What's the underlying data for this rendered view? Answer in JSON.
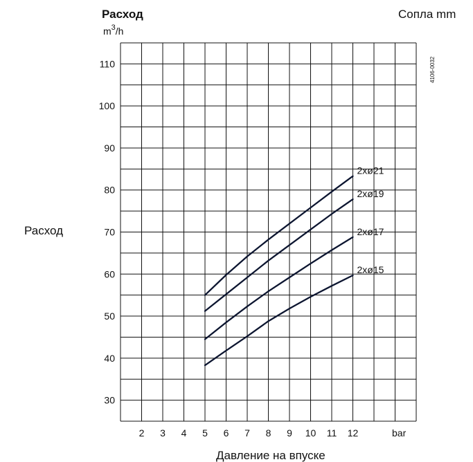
{
  "chart_data": {
    "type": "line",
    "title": "Расход",
    "unit_label": "m",
    "unit_sup": "3",
    "unit_tail": "/h",
    "side_label": "Расход",
    "legend_title": "Сопла mm",
    "xlabel": "Давление на впуске",
    "x_unit": "bar",
    "code": "4106-0032",
    "x_ticks": [
      2,
      3,
      4,
      5,
      6,
      7,
      8,
      9,
      10,
      11,
      12
    ],
    "y_ticks": [
      30,
      40,
      50,
      60,
      70,
      80,
      90,
      100,
      110
    ],
    "xlim": [
      1,
      15
    ],
    "ylim": [
      25,
      115
    ],
    "grid": true,
    "series": [
      {
        "name": "2xø21",
        "x": [
          5,
          6,
          7,
          8,
          9,
          10,
          11,
          12
        ],
        "y": [
          55,
          59.8,
          64.2,
          68.2,
          72,
          75.8,
          79.6,
          83.3
        ]
      },
      {
        "name": "2xø19",
        "x": [
          5,
          6,
          7,
          8,
          9,
          10,
          11,
          12
        ],
        "y": [
          51.2,
          55.2,
          59.2,
          63.2,
          66.9,
          70.6,
          74.3,
          77.8
        ]
      },
      {
        "name": "2xø17",
        "x": [
          5,
          6,
          7,
          8,
          9,
          10,
          11,
          12
        ],
        "y": [
          44.5,
          48.5,
          52.3,
          55.9,
          59.2,
          62.5,
          65.7,
          68.8
        ]
      },
      {
        "name": "2xø15",
        "x": [
          5,
          6,
          7,
          8,
          9,
          10,
          11,
          12
        ],
        "y": [
          38.3,
          41.8,
          45.2,
          48.8,
          51.8,
          54.6,
          57.2,
          59.7
        ]
      }
    ]
  }
}
